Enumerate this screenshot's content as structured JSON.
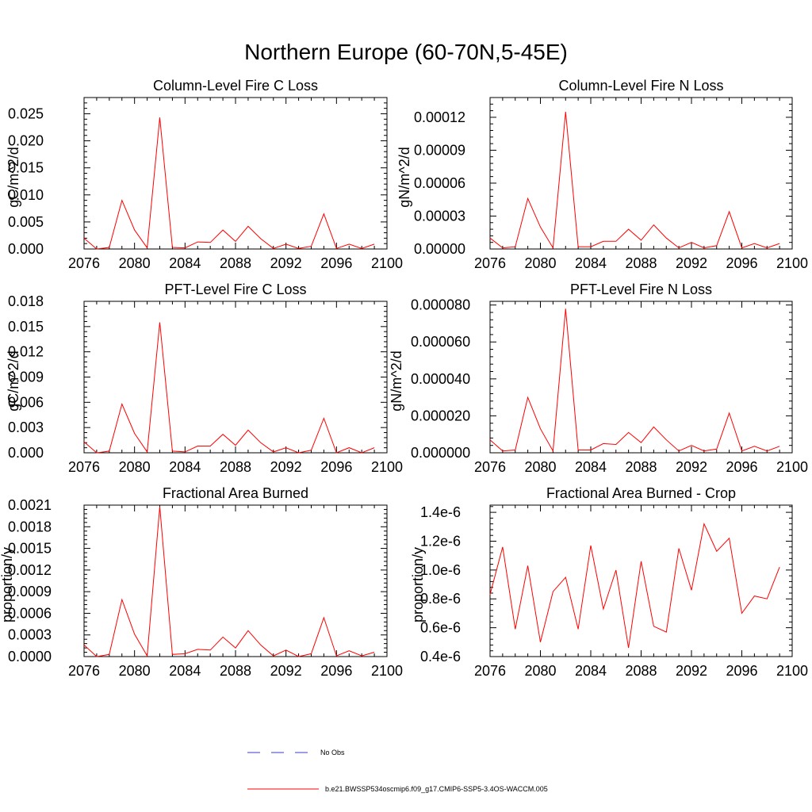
{
  "figure": {
    "title": "Northern Europe (60-70N,5-45E)"
  },
  "legend": {
    "items": [
      {
        "label": "No Obs",
        "style": "dashed",
        "color": "#3b3bcc"
      },
      {
        "label": "b.e21.BWSSP534oscmip6.f09_g17.CMIP6-SSP5-3.4OS-WACCM.005",
        "style": "solid",
        "color": "#ff0000"
      }
    ]
  },
  "chart_data": [
    {
      "type": "line",
      "title": "Column-Level Fire C Loss",
      "ylabel": "gC/m^2/d",
      "xlabel": "",
      "xlim": [
        2076,
        2100
      ],
      "ylim": [
        0,
        0.028
      ],
      "xticks": [
        "2076",
        "2080",
        "2084",
        "2088",
        "2092",
        "2096",
        "2100"
      ],
      "yticks": [
        "0.000",
        "0.005",
        "0.010",
        "0.015",
        "0.020",
        "0.025"
      ],
      "yticks_values": [
        0,
        0.005,
        0.01,
        0.015,
        0.02,
        0.025
      ],
      "x": [
        2076,
        2077,
        2078,
        2079,
        2080,
        2081,
        2082,
        2083,
        2084,
        2085,
        2086,
        2087,
        2088,
        2089,
        2090,
        2091,
        2092,
        2093,
        2094,
        2095,
        2096,
        2097,
        2098,
        2099
      ],
      "series": [
        {
          "color": "#ff0000",
          "values": [
            0.002,
            0.0,
            0.0003,
            0.009,
            0.0035,
            0.0002,
            0.0243,
            0.0003,
            0.0002,
            0.0013,
            0.0012,
            0.0035,
            0.0014,
            0.0042,
            0.0019,
            0.0001,
            0.0009,
            0.0001,
            0.0005,
            0.0065,
            0.0001,
            0.0009,
            0.0001,
            0.0009
          ]
        }
      ]
    },
    {
      "type": "line",
      "title": "Column-Level Fire N Loss",
      "ylabel": "gN/m^2/d",
      "xlabel": "",
      "xlim": [
        2076,
        2100
      ],
      "ylim": [
        0,
        0.000138
      ],
      "xticks": [
        "2076",
        "2080",
        "2084",
        "2088",
        "2092",
        "2096",
        "2100"
      ],
      "yticks": [
        "0.00000",
        "0.00003",
        "0.00006",
        "0.00009",
        "0.00012"
      ],
      "yticks_values": [
        0,
        3e-05,
        6e-05,
        9e-05,
        0.00012
      ],
      "x": [
        2076,
        2077,
        2078,
        2079,
        2080,
        2081,
        2082,
        2083,
        2084,
        2085,
        2086,
        2087,
        2088,
        2089,
        2090,
        2091,
        2092,
        2093,
        2094,
        2095,
        2096,
        2097,
        2098,
        2099
      ],
      "series": [
        {
          "color": "#ff0000",
          "values": [
            1e-05,
            1e-06,
            2e-06,
            4.6e-05,
            2e-05,
            1e-06,
            0.000125,
            2e-06,
            2e-06,
            7e-06,
            7e-06,
            1.8e-05,
            8e-06,
            2.2e-05,
            1e-05,
            1e-06,
            6e-06,
            1e-06,
            3e-06,
            3.4e-05,
            1e-06,
            5e-06,
            1e-06,
            5e-06
          ]
        }
      ]
    },
    {
      "type": "line",
      "title": "PFT-Level Fire C Loss",
      "ylabel": "gC/m^2/d",
      "xlabel": "",
      "xlim": [
        2076,
        2100
      ],
      "ylim": [
        0,
        0.018
      ],
      "xticks": [
        "2076",
        "2080",
        "2084",
        "2088",
        "2092",
        "2096",
        "2100"
      ],
      "yticks": [
        "0.000",
        "0.003",
        "0.006",
        "0.009",
        "0.012",
        "0.015",
        "0.018"
      ],
      "yticks_values": [
        0,
        0.003,
        0.006,
        0.009,
        0.012,
        0.015,
        0.018
      ],
      "x": [
        2076,
        2077,
        2078,
        2079,
        2080,
        2081,
        2082,
        2083,
        2084,
        2085,
        2086,
        2087,
        2088,
        2089,
        2090,
        2091,
        2092,
        2093,
        2094,
        2095,
        2096,
        2097,
        2098,
        2099
      ],
      "series": [
        {
          "color": "#ff0000",
          "values": [
            0.0013,
            0.0,
            0.0002,
            0.0058,
            0.0023,
            0.0001,
            0.0155,
            0.0002,
            0.0001,
            0.0008,
            0.0008,
            0.0022,
            0.0009,
            0.0027,
            0.0012,
            0.0001,
            0.0006,
            0.0,
            0.0003,
            0.0041,
            0.0,
            0.0006,
            0.0,
            0.0006
          ]
        }
      ]
    },
    {
      "type": "line",
      "title": "PFT-Level Fire N Loss",
      "ylabel": "gN/m^2/d",
      "xlabel": "",
      "xlim": [
        2076,
        2100
      ],
      "ylim": [
        0,
        8.2e-05
      ],
      "xticks": [
        "2076",
        "2080",
        "2084",
        "2088",
        "2092",
        "2096",
        "2100"
      ],
      "yticks": [
        "0.000000",
        "0.000020",
        "0.000040",
        "0.000060",
        "0.000080"
      ],
      "yticks_values": [
        0,
        2e-05,
        4e-05,
        6e-05,
        8e-05
      ],
      "x": [
        2076,
        2077,
        2078,
        2079,
        2080,
        2081,
        2082,
        2083,
        2084,
        2085,
        2086,
        2087,
        2088,
        2089,
        2090,
        2091,
        2092,
        2093,
        2094,
        2095,
        2096,
        2097,
        2098,
        2099
      ],
      "series": [
        {
          "color": "#ff0000",
          "values": [
            7e-06,
            1e-06,
            1.5e-06,
            3e-05,
            1.3e-05,
            1e-06,
            7.8e-05,
            1.5e-06,
            1.5e-06,
            5e-06,
            4.5e-06,
            1.1e-05,
            5.5e-06,
            1.4e-05,
            7e-06,
            1e-06,
            4e-06,
            1e-06,
            2e-06,
            2.15e-05,
            1e-06,
            3.5e-06,
            1e-06,
            3.5e-06
          ]
        }
      ]
    },
    {
      "type": "line",
      "title": "Fractional Area Burned",
      "ylabel": "proportion/y",
      "xlabel": "",
      "xlim": [
        2076,
        2100
      ],
      "ylim": [
        0,
        0.0021
      ],
      "xticks": [
        "2076",
        "2080",
        "2084",
        "2088",
        "2092",
        "2096",
        "2100"
      ],
      "yticks": [
        "0.0000",
        "0.0003",
        "0.0006",
        "0.0009",
        "0.0012",
        "0.0015",
        "0.0018",
        "0.0021"
      ],
      "yticks_values": [
        0,
        0.0003,
        0.0006,
        0.0009,
        0.0012,
        0.0015,
        0.0018,
        0.0021
      ],
      "x": [
        2076,
        2077,
        2078,
        2079,
        2080,
        2081,
        2082,
        2083,
        2084,
        2085,
        2086,
        2087,
        2088,
        2089,
        2090,
        2091,
        2092,
        2093,
        2094,
        2095,
        2096,
        2097,
        2098,
        2099
      ],
      "series": [
        {
          "color": "#ff0000",
          "values": [
            0.00016,
            0.0,
            3e-05,
            0.00079,
            0.00031,
            1e-05,
            0.00208,
            3e-05,
            4e-05,
            0.0001,
            9e-05,
            0.00027,
            0.00012,
            0.00036,
            0.00016,
            1e-05,
            9e-05,
            0.0,
            4e-05,
            0.00054,
            1e-05,
            8e-05,
            1e-05,
            6e-05
          ]
        }
      ]
    },
    {
      "type": "line",
      "title": "Fractional Area Burned - Crop",
      "ylabel": "proportion/y",
      "xlabel": "",
      "xlim": [
        2076,
        2100
      ],
      "ylim": [
        4e-07,
        1.45e-06
      ],
      "xticks": [
        "2076",
        "2080",
        "2084",
        "2088",
        "2092",
        "2096",
        "2100"
      ],
      "yticks": [
        "0.4e-6",
        "0.6e-6",
        "0.8e-6",
        "1.0e-6",
        "1.2e-6",
        "1.4e-6"
      ],
      "yticks_values": [
        4e-07,
        6e-07,
        8e-07,
        1e-06,
        1.2e-06,
        1.4e-06
      ],
      "x": [
        2076,
        2077,
        2078,
        2079,
        2080,
        2081,
        2082,
        2083,
        2084,
        2085,
        2086,
        2087,
        2088,
        2089,
        2090,
        2091,
        2092,
        2093,
        2094,
        2095,
        2096,
        2097,
        2098,
        2099
      ],
      "series": [
        {
          "color": "#ff0000",
          "values": [
            8.3e-07,
            1.16e-06,
            5.9e-07,
            1.03e-06,
            5e-07,
            8.5e-07,
            9.5e-07,
            5.9e-07,
            1.17e-06,
            7.3e-07,
            1e-06,
            4.6e-07,
            1.06e-06,
            6.1e-07,
            5.7e-07,
            1.15e-06,
            8.6e-07,
            1.32e-06,
            1.13e-06,
            1.22e-06,
            7e-07,
            8.2e-07,
            8e-07,
            1.02e-06
          ]
        }
      ]
    }
  ]
}
